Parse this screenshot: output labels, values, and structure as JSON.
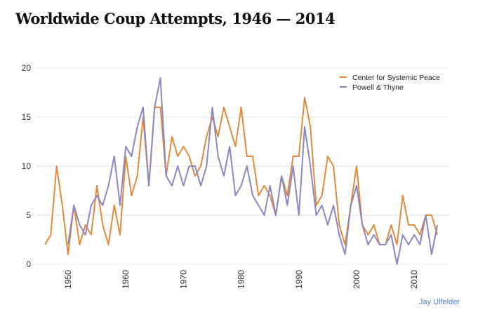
{
  "chart_data": {
    "type": "line",
    "title": "Worldwide Coup Attempts, 1946 — 2014",
    "xlabel": "",
    "ylabel": "",
    "xlim": [
      1945,
      2016
    ],
    "ylim": [
      0,
      20
    ],
    "y_ticks": [
      0,
      5,
      10,
      15,
      20
    ],
    "x_ticks": [
      1950,
      1960,
      1970,
      1980,
      1990,
      2000,
      2010
    ],
    "y_tick_labels": [
      "0",
      "5",
      "10",
      "15",
      "20"
    ],
    "x_tick_labels": [
      "1950",
      "1960",
      "1970",
      "1980",
      "1990",
      "2000",
      "2010"
    ],
    "grid": "horizontal",
    "legend_position": "top-right",
    "series": [
      {
        "name": "Center for Systemic Peace",
        "color": "#e08a3c",
        "x_start": 1946,
        "values": [
          2,
          3,
          10,
          6,
          1,
          6,
          2,
          4,
          3,
          8,
          4,
          2,
          6,
          3,
          11,
          7,
          9,
          15,
          8,
          16,
          16,
          9,
          13,
          11,
          12,
          11,
          9,
          10,
          13,
          15,
          13,
          16,
          14,
          12,
          16,
          11,
          11,
          7,
          8,
          7,
          5,
          9,
          7,
          11,
          11,
          17,
          14,
          6,
          7,
          11,
          10,
          4,
          2,
          6,
          10,
          4,
          3,
          4,
          2,
          2,
          4,
          2,
          7,
          4,
          4,
          3,
          5,
          5,
          3
        ]
      },
      {
        "name": "Powell & Thyne",
        "color": "#8e86c4",
        "x_start": 1950,
        "values": [
          2,
          6,
          4,
          3,
          6,
          7,
          6,
          8,
          11,
          6,
          12,
          11,
          14,
          16,
          8,
          16,
          19,
          9,
          8,
          10,
          8,
          10,
          10,
          8,
          10,
          16,
          11,
          9,
          12,
          7,
          8,
          10,
          7,
          6,
          5,
          8,
          5,
          9,
          6,
          10,
          5,
          14,
          10,
          5,
          6,
          4,
          6,
          3,
          1,
          6,
          8,
          4,
          2,
          3,
          2,
          2,
          3,
          0,
          3,
          2,
          3,
          2,
          5,
          1,
          4
        ]
      }
    ]
  },
  "credit": "Jay Ulfelder"
}
